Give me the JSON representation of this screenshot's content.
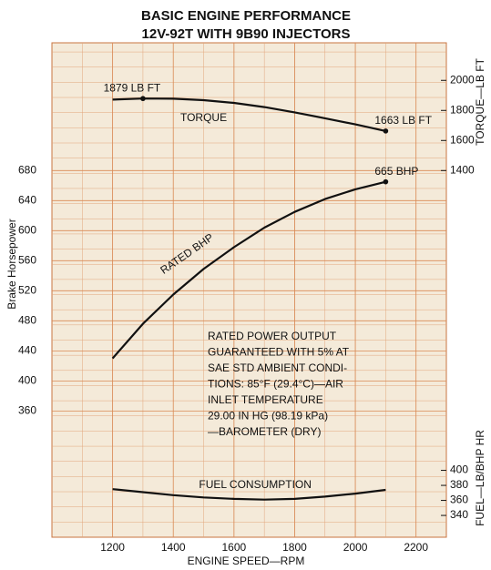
{
  "chart_data": {
    "type": "line",
    "title": "BASIC ENGINE PERFORMANCE",
    "subtitle": "12V-92T WITH 9B90 INJECTORS",
    "x_label": "ENGINE SPEED—RPM",
    "y_label": "Brake Horsepower",
    "y2_label": "TORQUE—LB FT",
    "y3_label": "FUEL—LB/BHP HR",
    "x": [
      1200,
      1300,
      1400,
      1500,
      1600,
      1700,
      1800,
      1900,
      2000,
      2100
    ],
    "xlim": [
      1000,
      2300
    ],
    "xticks": [
      1200,
      1400,
      1600,
      1800,
      2000,
      2200
    ],
    "ylim": [
      192,
      850
    ],
    "yticks": [
      360,
      400,
      440,
      480,
      520,
      560,
      600,
      640,
      680
    ],
    "y2lim": [
      -1040,
      2250
    ],
    "y2ticks": [
      1400,
      1600,
      1800,
      2000
    ],
    "y3lim": [
      311,
      969
    ],
    "y3ticks": [
      340,
      360,
      380,
      400
    ],
    "grid": true,
    "series": [
      {
        "name": "RATED BHP",
        "color": "#111111",
        "axis": "y",
        "values": [
          430,
          476,
          515,
          549,
          578,
          604,
          625,
          642,
          655,
          665
        ],
        "value_labels": [
          null,
          null,
          null,
          null,
          null,
          null,
          null,
          null,
          null,
          "665 BHP"
        ]
      },
      {
        "name": "TORQUE",
        "color": "#111111",
        "axis": "y2",
        "values": [
          1872,
          1879,
          1878,
          1868,
          1850,
          1822,
          1787,
          1748,
          1707,
          1663
        ],
        "value_labels": [
          null,
          "1879 LB FT",
          null,
          null,
          null,
          null,
          null,
          null,
          null,
          "1663 LB FT"
        ]
      },
      {
        "name": "FUEL CONSUMPTION",
        "color": "#111111",
        "axis": "y3",
        "values": [
          375,
          371,
          367,
          364,
          362,
          361,
          362,
          365,
          369,
          374
        ],
        "value_labels": [
          null,
          null,
          null,
          null,
          null,
          null,
          null,
          null,
          null,
          null
        ]
      }
    ],
    "note": [
      "RATED POWER OUTPUT",
      "GUARANTEED WITH 5% AT",
      "SAE STD AMBIENT CONDI-",
      "TIONS: 85°F (29.4°C)—AIR",
      "INLET TEMPERATURE",
      "29.00 IN HG (98.19 kPa)",
      "—BAROMETER (DRY)"
    ]
  }
}
